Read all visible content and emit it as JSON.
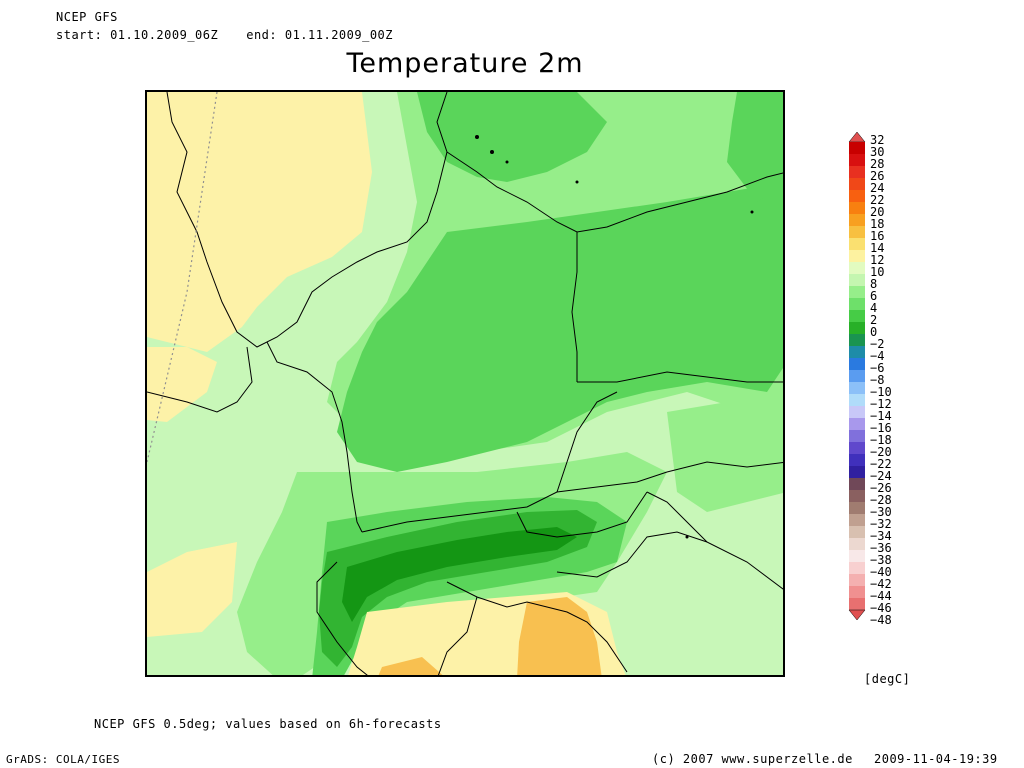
{
  "header": {
    "model": "NCEP GFS",
    "start": "start: 01.10.2009_06Z",
    "end": "end: 01.11.2009_00Z",
    "title": "Temperature 2m"
  },
  "map": {
    "region": "Central Europe",
    "field_colors": {
      "ocean_pale_yellow": "#fdf2a8",
      "light_green": "#c8f7b8",
      "medium_green": "#96ee8a",
      "green": "#5ad55a",
      "dark_green": "#32b432",
      "darkest_green": "#149614",
      "orange": "#f8c050"
    }
  },
  "colorbar": {
    "unit": "[degC]",
    "levels": [
      "32",
      "30",
      "28",
      "26",
      "24",
      "22",
      "20",
      "18",
      "16",
      "14",
      "12",
      "10",
      "8",
      "6",
      "4",
      "2",
      "0",
      "-2",
      "-4",
      "-6",
      "-8",
      "-10",
      "-12",
      "-14",
      "-16",
      "-18",
      "-20",
      "-22",
      "-24",
      "-26",
      "-28",
      "-30",
      "-32",
      "-34",
      "-36",
      "-38",
      "-40",
      "-42",
      "-44",
      "-46",
      "-48"
    ],
    "colors": [
      "#e05050",
      "#c80000",
      "#d81010",
      "#e83020",
      "#f04818",
      "#f86010",
      "#f88010",
      "#f8a020",
      "#f8c040",
      "#fae070",
      "#fdf2a0",
      "#e2fbc0",
      "#c4f6b0",
      "#96ee8a",
      "#6ee06a",
      "#46cc46",
      "#28b028",
      "#1a9450",
      "#1e8ca8",
      "#2a7ae0",
      "#5a9cf0",
      "#8cc0f8",
      "#b0dcfa",
      "#c8c8f8",
      "#a898ec",
      "#8070dc",
      "#6048cc",
      "#4030bc",
      "#3020a0",
      "#704858",
      "#8a6060",
      "#a07c70",
      "#c0a090",
      "#d8c0b0",
      "#ecd8d0",
      "#f8e8e8",
      "#f8d0d0",
      "#f4b0b0",
      "#f09090",
      "#e87070",
      "#e05050"
    ]
  },
  "footer": {
    "note": "NCEP GFS 0.5deg; values based on 6h-forecasts",
    "software": "GrADS: COLA/IGES",
    "copyright": "(c) 2007 www.superzelle.de",
    "timestamp": "2009-11-04-19:39"
  }
}
